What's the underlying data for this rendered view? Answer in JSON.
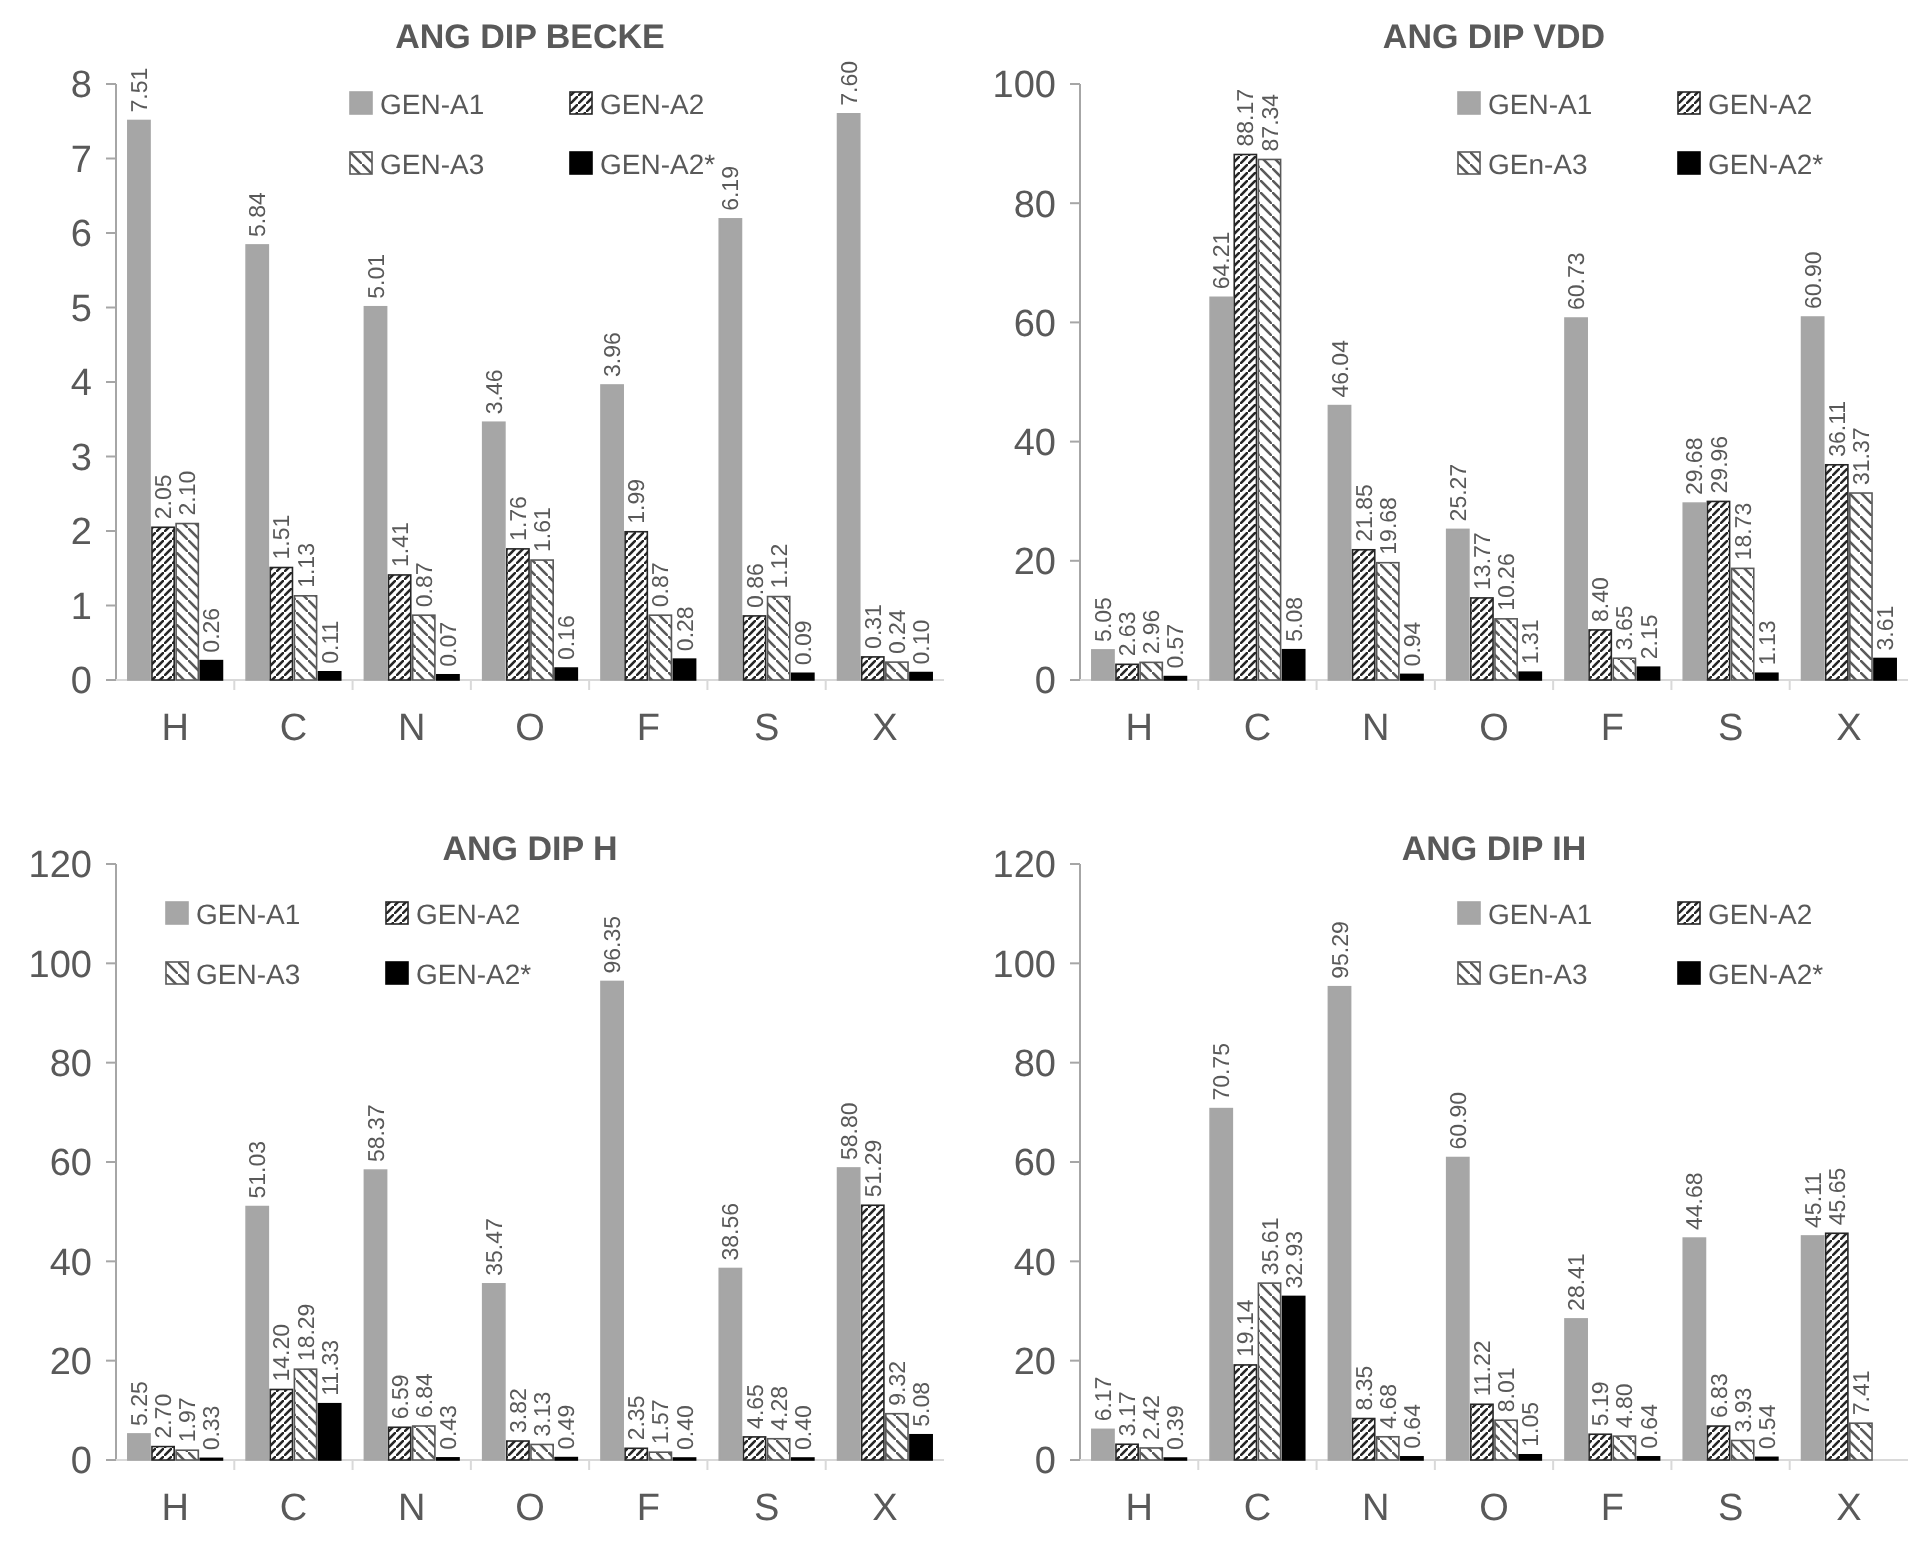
{
  "chart_data": [
    {
      "type": "bar",
      "title": "ANG DIP BECKE",
      "categories": [
        "H",
        "C",
        "N",
        "O",
        "F",
        "S",
        "X"
      ],
      "ylim": [
        0,
        8
      ],
      "yticks": [
        0,
        1,
        2,
        3,
        4,
        5,
        6,
        7,
        8
      ],
      "grid": false,
      "legend": "top",
      "series": [
        {
          "name": "GEN-A1",
          "color": "#a6a6a6",
          "values": [
            7.51,
            5.84,
            5.01,
            3.46,
            3.96,
            6.19,
            7.6
          ],
          "value_labels": [
            "7.51",
            "5.84",
            "5.01",
            "3.46",
            "3.96",
            "6.19",
            "7.60"
          ]
        },
        {
          "name": "GEN-A2",
          "color": "#262626",
          "values": [
            2.05,
            1.51,
            1.41,
            1.76,
            1.99,
            0.86,
            0.31
          ],
          "value_labels": [
            "2.05",
            "1.51",
            "1.41",
            "1.76",
            "1.99",
            "0.86",
            "0.31"
          ]
        },
        {
          "name": "GEN-A3",
          "color": "#595959",
          "values": [
            2.1,
            1.13,
            0.87,
            1.61,
            0.87,
            1.12,
            0.24
          ],
          "value_labels": [
            "2.10",
            "1.13",
            "0.87",
            "1.61",
            "0.87",
            "1.12",
            "0.24"
          ]
        },
        {
          "name": "GEN-A2*",
          "color": "#000000",
          "values": [
            0.26,
            0.11,
            0.07,
            0.16,
            0.28,
            0.09,
            0.1
          ],
          "value_labels": [
            "0.26",
            "0.11",
            "0.07",
            "0.16",
            "0.28",
            "0.09",
            "0.10"
          ]
        }
      ]
    },
    {
      "type": "bar",
      "title": "ANG DIP VDD",
      "categories": [
        "H",
        "C",
        "N",
        "O",
        "F",
        "S",
        "X"
      ],
      "ylim": [
        0,
        100
      ],
      "yticks": [
        0,
        20,
        40,
        60,
        80,
        100
      ],
      "grid": false,
      "legend": "top right",
      "series": [
        {
          "name": "GEN-A1",
          "color": "#a6a6a6",
          "values": [
            5.05,
            64.21,
            46.04,
            25.27,
            60.73,
            29.68,
            60.9
          ],
          "value_labels": [
            "5.05",
            "64.21",
            "46.04",
            "25.27",
            "60.73",
            "29.68",
            "60.90"
          ]
        },
        {
          "name": "GEN-A2",
          "color": "#262626",
          "values": [
            2.63,
            88.17,
            21.85,
            13.77,
            8.4,
            29.96,
            36.11
          ],
          "value_labels": [
            "2.63",
            "88.17",
            "21.85",
            "13.77",
            "8.40",
            "29.96",
            "36.11"
          ]
        },
        {
          "name": "GEn-A3",
          "color": "#595959",
          "values": [
            2.96,
            87.34,
            19.68,
            10.26,
            3.65,
            18.73,
            31.37
          ],
          "value_labels": [
            "2.96",
            "87.34",
            "19.68",
            "10.26",
            "3.65",
            "18.73",
            "31.37"
          ]
        },
        {
          "name": "GEN-A2*",
          "color": "#000000",
          "values": [
            0.57,
            5.08,
            0.94,
            1.31,
            2.15,
            1.13,
            3.61
          ],
          "value_labels": [
            "0.57",
            "5.08",
            "0.94",
            "1.31",
            "2.15",
            "1.13",
            "3.61"
          ]
        }
      ]
    },
    {
      "type": "bar",
      "title": "ANG DIP H",
      "categories": [
        "H",
        "C",
        "N",
        "O",
        "F",
        "S",
        "X"
      ],
      "ylim": [
        0,
        120
      ],
      "yticks": [
        0,
        20,
        40,
        60,
        80,
        100,
        120
      ],
      "grid": false,
      "legend": "top left",
      "series": [
        {
          "name": "GEN-A1",
          "color": "#a6a6a6",
          "values": [
            5.25,
            51.03,
            58.37,
            35.47,
            96.35,
            38.56,
            58.8
          ],
          "value_labels": [
            "5.25",
            "51.03",
            "58.37",
            "35.47",
            "96.35",
            "38.56",
            "58.80"
          ]
        },
        {
          "name": "GEN-A2",
          "color": "#262626",
          "values": [
            2.7,
            14.2,
            6.59,
            3.82,
            2.35,
            4.65,
            51.29
          ],
          "value_labels": [
            "2.70",
            "14.20",
            "6.59",
            "3.82",
            "2.35",
            "4.65",
            "51.29"
          ]
        },
        {
          "name": "GEN-A3",
          "color": "#595959",
          "values": [
            1.97,
            18.29,
            6.84,
            3.13,
            1.57,
            4.28,
            9.32
          ],
          "value_labels": [
            "1.97",
            "18.29",
            "6.84",
            "3.13",
            "1.57",
            "4.28",
            "9.32"
          ]
        },
        {
          "name": "GEN-A2*",
          "color": "#000000",
          "values": [
            0.33,
            11.33,
            0.43,
            0.49,
            0.4,
            0.4,
            5.08
          ],
          "value_labels": [
            "0.33",
            "11.33",
            "0.43",
            "0.49",
            "0.40",
            "0.40",
            "5.08"
          ]
        }
      ]
    },
    {
      "type": "bar",
      "title": "ANG DIP IH",
      "categories": [
        "H",
        "C",
        "N",
        "O",
        "F",
        "S",
        "X"
      ],
      "ylim": [
        0,
        120
      ],
      "yticks": [
        0,
        20,
        40,
        60,
        80,
        100,
        120
      ],
      "grid": false,
      "legend": "top right",
      "series": [
        {
          "name": "GEN-A1",
          "color": "#a6a6a6",
          "values": [
            6.17,
            70.75,
            95.29,
            60.9,
            28.41,
            44.68,
            45.11
          ],
          "value_labels": [
            "6.17",
            "70.75",
            "95.29",
            "60.90",
            "28.41",
            "44.68",
            "45.11"
          ]
        },
        {
          "name": "GEN-A2",
          "color": "#262626",
          "values": [
            3.17,
            19.14,
            8.35,
            11.22,
            5.19,
            6.83,
            45.65
          ],
          "value_labels": [
            "3.17",
            "19.14",
            "8.35",
            "11.22",
            "5.19",
            "6.83",
            "45.65"
          ]
        },
        {
          "name": "GEn-A3",
          "color": "#595959",
          "values": [
            2.42,
            35.61,
            4.68,
            8.01,
            4.8,
            3.93,
            7.41
          ],
          "value_labels": [
            "2.42",
            "35.61",
            "4.68",
            "8.01",
            "4.80",
            "3.93",
            "7.41"
          ]
        },
        {
          "name": "GEN-A2*",
          "color": "#000000",
          "values": [
            0.39,
            32.93,
            0.64,
            1.05,
            0.64,
            0.54,
            null
          ],
          "value_labels": [
            "0.39",
            "32.93",
            "0.64",
            "1.05",
            "0.64",
            "0.54",
            null
          ]
        }
      ]
    }
  ]
}
